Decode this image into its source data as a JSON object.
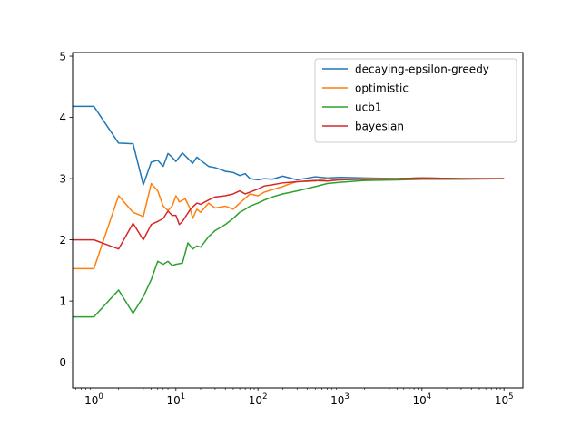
{
  "chart_data": {
    "type": "line",
    "title": "",
    "xlabel": "",
    "ylabel": "",
    "xscale": "log",
    "xlim": [
      0.55,
      170000
    ],
    "ylim": [
      -0.42,
      5.06
    ],
    "x_ticks": [
      {
        "value": 1,
        "base": "10",
        "exp": "0"
      },
      {
        "value": 10,
        "base": "10",
        "exp": "1"
      },
      {
        "value": 100,
        "base": "10",
        "exp": "2"
      },
      {
        "value": 1000,
        "base": "10",
        "exp": "3"
      },
      {
        "value": 10000,
        "base": "10",
        "exp": "4"
      },
      {
        "value": 100000,
        "base": "10",
        "exp": "5"
      }
    ],
    "y_ticks": [
      {
        "value": 0,
        "label": "0"
      },
      {
        "value": 1,
        "label": "1"
      },
      {
        "value": 2,
        "label": "2"
      },
      {
        "value": 3,
        "label": "3"
      },
      {
        "value": 4,
        "label": "4"
      },
      {
        "value": 5,
        "label": "5"
      }
    ],
    "grid": false,
    "legend_position": "top-right",
    "series": [
      {
        "name": "decaying-epsilon-greedy",
        "color": "#1f77b4",
        "points": [
          [
            0.55,
            4.18
          ],
          [
            1,
            4.18
          ],
          [
            2,
            3.58
          ],
          [
            3,
            3.57
          ],
          [
            4,
            2.9
          ],
          [
            5,
            3.27
          ],
          [
            6,
            3.3
          ],
          [
            7,
            3.2
          ],
          [
            8,
            3.41
          ],
          [
            9,
            3.35
          ],
          [
            10,
            3.28
          ],
          [
            12,
            3.42
          ],
          [
            14,
            3.33
          ],
          [
            16,
            3.25
          ],
          [
            18,
            3.35
          ],
          [
            20,
            3.3
          ],
          [
            25,
            3.2
          ],
          [
            30,
            3.18
          ],
          [
            40,
            3.12
          ],
          [
            50,
            3.1
          ],
          [
            60,
            3.05
          ],
          [
            70,
            3.08
          ],
          [
            80,
            3.0
          ],
          [
            100,
            2.98
          ],
          [
            120,
            3.0
          ],
          [
            150,
            2.99
          ],
          [
            200,
            3.04
          ],
          [
            300,
            2.98
          ],
          [
            500,
            3.03
          ],
          [
            700,
            3.01
          ],
          [
            1000,
            3.02
          ],
          [
            2000,
            3.01
          ],
          [
            5000,
            3.0
          ],
          [
            10000,
            3.01
          ],
          [
            30000,
            3.0
          ],
          [
            100000,
            3.0
          ]
        ]
      },
      {
        "name": "optimistic",
        "color": "#ff7f0e",
        "points": [
          [
            0.55,
            1.53
          ],
          [
            1,
            1.53
          ],
          [
            2,
            2.72
          ],
          [
            3,
            2.45
          ],
          [
            4,
            2.38
          ],
          [
            5,
            2.92
          ],
          [
            6,
            2.8
          ],
          [
            7,
            2.55
          ],
          [
            8,
            2.48
          ],
          [
            9,
            2.55
          ],
          [
            10,
            2.72
          ],
          [
            11,
            2.62
          ],
          [
            13,
            2.67
          ],
          [
            15,
            2.5
          ],
          [
            16,
            2.35
          ],
          [
            18,
            2.5
          ],
          [
            20,
            2.45
          ],
          [
            25,
            2.6
          ],
          [
            30,
            2.52
          ],
          [
            40,
            2.55
          ],
          [
            50,
            2.5
          ],
          [
            60,
            2.6
          ],
          [
            70,
            2.68
          ],
          [
            80,
            2.75
          ],
          [
            100,
            2.72
          ],
          [
            120,
            2.78
          ],
          [
            150,
            2.82
          ],
          [
            200,
            2.87
          ],
          [
            250,
            2.92
          ],
          [
            300,
            2.95
          ],
          [
            500,
            2.96
          ],
          [
            700,
            3.0
          ],
          [
            1000,
            2.98
          ],
          [
            2000,
            3.0
          ],
          [
            5000,
            3.0
          ],
          [
            10000,
            3.01
          ],
          [
            30000,
            3.0
          ],
          [
            100000,
            3.0
          ]
        ]
      },
      {
        "name": "ucb1",
        "color": "#2ca02c",
        "points": [
          [
            0.55,
            0.74
          ],
          [
            1,
            0.74
          ],
          [
            2,
            1.18
          ],
          [
            3,
            0.8
          ],
          [
            4,
            1.07
          ],
          [
            5,
            1.35
          ],
          [
            6,
            1.65
          ],
          [
            7,
            1.6
          ],
          [
            8,
            1.65
          ],
          [
            9,
            1.58
          ],
          [
            10,
            1.6
          ],
          [
            12,
            1.62
          ],
          [
            14,
            1.95
          ],
          [
            16,
            1.85
          ],
          [
            18,
            1.9
          ],
          [
            20,
            1.88
          ],
          [
            25,
            2.05
          ],
          [
            30,
            2.15
          ],
          [
            40,
            2.25
          ],
          [
            50,
            2.35
          ],
          [
            60,
            2.45
          ],
          [
            70,
            2.5
          ],
          [
            80,
            2.55
          ],
          [
            100,
            2.6
          ],
          [
            120,
            2.65
          ],
          [
            150,
            2.7
          ],
          [
            200,
            2.75
          ],
          [
            300,
            2.8
          ],
          [
            500,
            2.87
          ],
          [
            700,
            2.92
          ],
          [
            1000,
            2.94
          ],
          [
            2000,
            2.97
          ],
          [
            5000,
            2.98
          ],
          [
            10000,
            2.99
          ],
          [
            30000,
            2.99
          ],
          [
            100000,
            3.0
          ]
        ]
      },
      {
        "name": "bayesian",
        "color": "#d62728",
        "points": [
          [
            0.55,
            2.0
          ],
          [
            1,
            2.0
          ],
          [
            2,
            1.85
          ],
          [
            3,
            2.27
          ],
          [
            4,
            2.0
          ],
          [
            5,
            2.25
          ],
          [
            6,
            2.3
          ],
          [
            7,
            2.35
          ],
          [
            8,
            2.47
          ],
          [
            9,
            2.4
          ],
          [
            10,
            2.4
          ],
          [
            11,
            2.25
          ],
          [
            12,
            2.3
          ],
          [
            15,
            2.5
          ],
          [
            18,
            2.6
          ],
          [
            20,
            2.58
          ],
          [
            25,
            2.65
          ],
          [
            30,
            2.7
          ],
          [
            40,
            2.72
          ],
          [
            50,
            2.75
          ],
          [
            60,
            2.8
          ],
          [
            70,
            2.75
          ],
          [
            80,
            2.78
          ],
          [
            100,
            2.83
          ],
          [
            120,
            2.88
          ],
          [
            150,
            2.9
          ],
          [
            200,
            2.93
          ],
          [
            300,
            2.95
          ],
          [
            500,
            2.97
          ],
          [
            700,
            2.96
          ],
          [
            1000,
            2.98
          ],
          [
            2000,
            2.99
          ],
          [
            5000,
            3.0
          ],
          [
            10000,
            3.01
          ],
          [
            30000,
            3.0
          ],
          [
            100000,
            3.0
          ]
        ]
      }
    ]
  }
}
